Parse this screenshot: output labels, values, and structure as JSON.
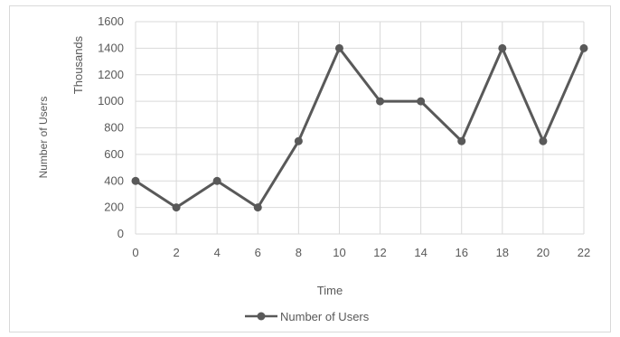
{
  "chart_data": {
    "type": "line",
    "x": [
      0,
      2,
      4,
      6,
      8,
      10,
      12,
      14,
      16,
      18,
      20,
      22
    ],
    "series": [
      {
        "name": "Number of Users",
        "values": [
          400,
          200,
          400,
          200,
          700,
          1400,
          1000,
          1000,
          700,
          1400,
          700,
          1400
        ]
      }
    ],
    "xlabel": "Time",
    "ylabel": "Number of Users",
    "yunit_label": "Thousands",
    "xlim": [
      0,
      22
    ],
    "ylim": [
      0,
      1600
    ],
    "xticks": [
      "0",
      "2",
      "4",
      "6",
      "8",
      "10",
      "12",
      "14",
      "16",
      "18",
      "20",
      "22"
    ],
    "yticks": [
      "0",
      "200",
      "400",
      "600",
      "800",
      "1000",
      "1200",
      "1400",
      "1600"
    ],
    "grid": true,
    "legend_position": "bottom",
    "colors": {
      "series": "#595959",
      "grid": "#d9d9d9",
      "text": "#595959"
    }
  }
}
